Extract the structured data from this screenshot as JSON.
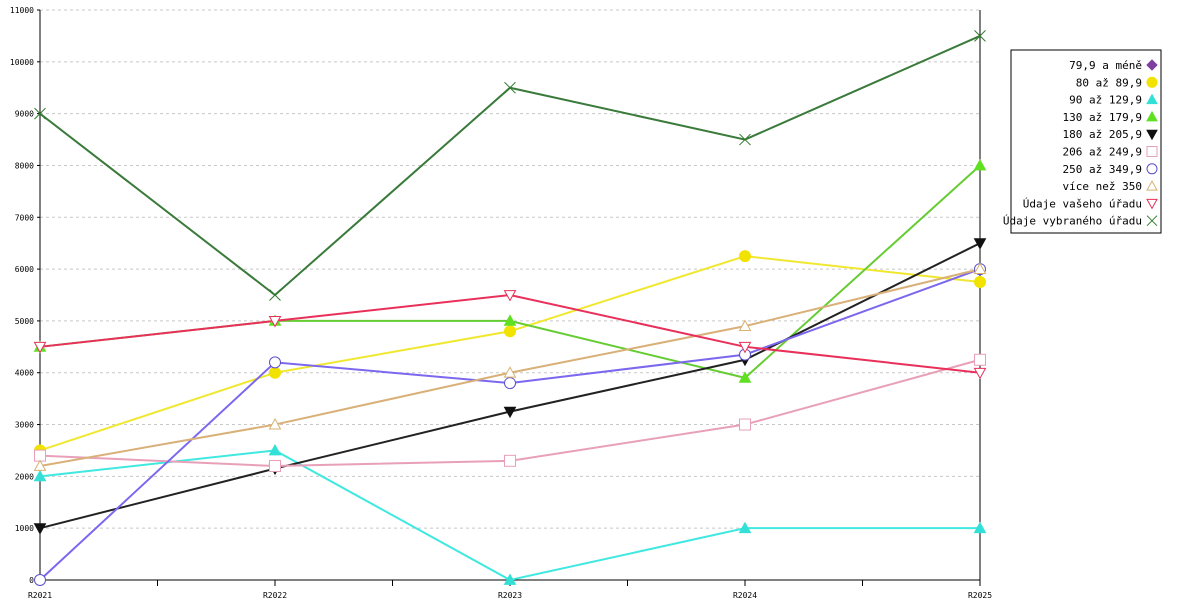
{
  "chart_data": {
    "type": "line",
    "categories": [
      "R2021",
      "R2022",
      "R2023",
      "R2024",
      "R2025"
    ],
    "ylim": [
      0,
      11000
    ],
    "yticks": [
      0,
      1000,
      2000,
      3000,
      4000,
      5000,
      6000,
      7000,
      8000,
      9000,
      10000,
      11000
    ],
    "grid": true,
    "legend_position": "right",
    "series": [
      {
        "name": "79,9 a méně",
        "color": "#7f3f9f",
        "line_color": "#7f3f9f",
        "marker": "diamond-filled",
        "values": [
          null,
          null,
          null,
          null,
          null
        ]
      },
      {
        "name": "80 až 89,9",
        "color": "#f2e200",
        "line_color": "#f0e830",
        "marker": "circle-filled",
        "values": [
          2500,
          4000,
          4800,
          6250,
          5750
        ]
      },
      {
        "name": "90 až 129,9",
        "color": "#33e0d8",
        "line_color": "#40e8e0",
        "marker": "triangle-up-filled",
        "values": [
          2000,
          2500,
          0,
          1000,
          1000
        ]
      },
      {
        "name": "130 až 179,9",
        "color": "#5fe020",
        "line_color": "#66cc33",
        "marker": "triangle-up-filled",
        "values": [
          4500,
          5000,
          5000,
          3900,
          8000
        ]
      },
      {
        "name": "180 až 205,9",
        "color": "#101010",
        "line_color": "#222222",
        "marker": "triangle-down-filled",
        "values": [
          1000,
          2150,
          3250,
          4250,
          6500
        ]
      },
      {
        "name": "206 až 249,9",
        "color": "#e8a0b8",
        "line_color": "#e8a0b8",
        "marker": "square-open",
        "values": [
          2400,
          2200,
          2300,
          3000,
          4250
        ]
      },
      {
        "name": "250 až 349,9",
        "color": "#5a50c8",
        "line_color": "#7b68ee",
        "marker": "circle-open",
        "values": [
          0,
          4200,
          3800,
          4350,
          6000
        ]
      },
      {
        "name": "více než 350",
        "color": "#d8b070",
        "line_color": "#d8b078",
        "marker": "triangle-up-open",
        "values": [
          2200,
          3000,
          4000,
          4900,
          6000
        ]
      },
      {
        "name": "Údaje vašeho úřadu",
        "color": "#e8305a",
        "line_color": "#e8305a",
        "marker": "triangle-down-open",
        "values": [
          4500,
          5000,
          5500,
          4500,
          4000
        ]
      },
      {
        "name": "Údaje vybraného úřadu",
        "color": "#2f7a2f",
        "line_color": "#3a7a3a",
        "marker": "x",
        "values": [
          9000,
          5500,
          9500,
          8500,
          10500
        ]
      }
    ]
  }
}
